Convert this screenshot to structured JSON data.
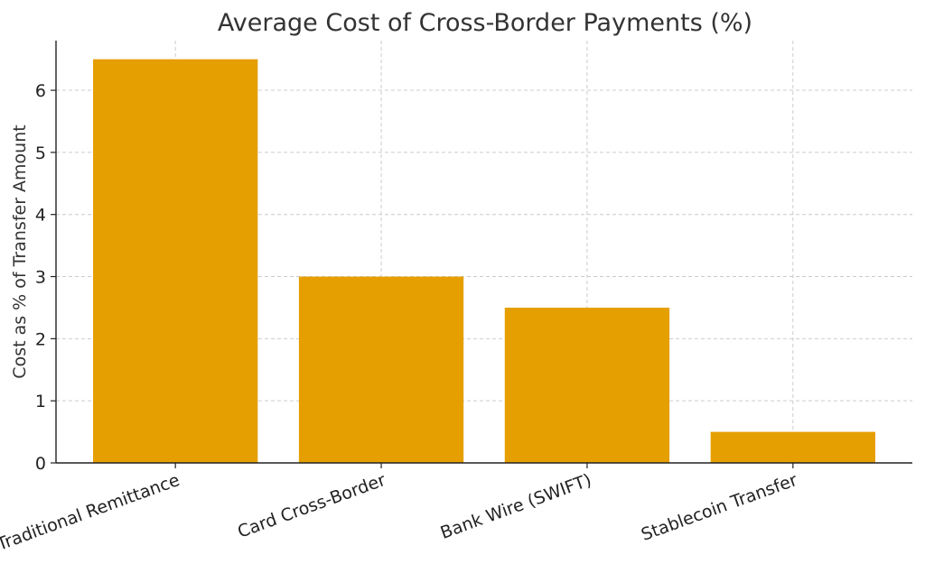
{
  "chart_data": {
    "type": "bar",
    "title": "Average Cost of Cross-Border Payments (%)",
    "xlabel": "",
    "ylabel": "Cost as % of Transfer Amount",
    "categories": [
      "Traditional Remittance",
      "Card Cross-Border",
      "Bank Wire (SWIFT)",
      "Stablecoin Transfer"
    ],
    "values": [
      6.5,
      3.0,
      2.5,
      0.5
    ],
    "yticks": [
      0,
      1,
      2,
      3,
      4,
      5,
      6
    ],
    "ytick_labels": [
      "0",
      "1",
      "2",
      "3",
      "4",
      "5",
      "6"
    ],
    "ylim": [
      0,
      6.8
    ],
    "grid": true,
    "bar_color": "#E69F00"
  }
}
